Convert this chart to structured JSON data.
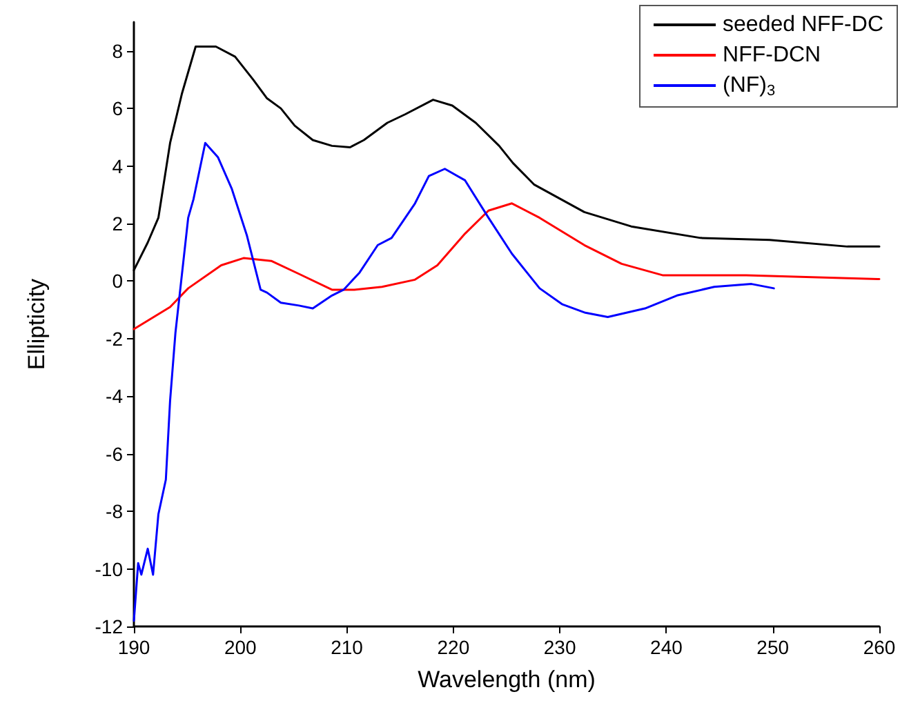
{
  "chart_data": {
    "type": "line",
    "xlabel": "Wavelength (nm)",
    "ylabel": "Ellipticity",
    "xlim": [
      190,
      260
    ],
    "xticks": [
      190,
      200,
      210,
      220,
      230,
      240,
      250,
      260
    ],
    "ylim": [
      -12,
      9
    ],
    "yticks": [
      -12,
      -10,
      -8,
      -6,
      -4,
      -2,
      0,
      2,
      4,
      6,
      8
    ],
    "legend": "top right",
    "series": [
      {
        "name": "seeded NFF-DC",
        "color": "#000000",
        "x": [
          190,
          191.3,
          192.3,
          193.4,
          194.5,
          195.8,
          197.7,
          199.5,
          201.2,
          202.5,
          203.8,
          205.1,
          206.8,
          208.6,
          210.3,
          211.6,
          213.8,
          215.5,
          218.1,
          219.9,
          222.1,
          224.3,
          225.6,
          227.6,
          232.3,
          236.7,
          243.2,
          249.7,
          257,
          260
        ],
        "values": [
          0.38,
          1.34,
          2.2,
          4.8,
          6.5,
          8.15,
          8.15,
          7.8,
          7.0,
          6.35,
          6.0,
          5.4,
          4.9,
          4.7,
          4.65,
          4.9,
          5.5,
          5.8,
          6.3,
          6.1,
          5.5,
          4.7,
          4.1,
          3.35,
          2.4,
          1.9,
          1.5,
          1.43,
          1.2,
          1.2
        ]
      },
      {
        "name": "NFF-DCN",
        "color": "#ff0000",
        "x": [
          190,
          193.4,
          195.1,
          198.2,
          200.3,
          202.9,
          205.5,
          208.6,
          210.7,
          213.3,
          216.4,
          218.5,
          221.1,
          223.3,
          225.5,
          228.1,
          232.3,
          235.8,
          239.7,
          247.5,
          260
        ],
        "values": [
          -1.67,
          -0.9,
          -0.25,
          0.55,
          0.8,
          0.7,
          0.25,
          -0.3,
          -0.3,
          -0.2,
          0.05,
          0.55,
          1.65,
          2.45,
          2.7,
          2.2,
          1.25,
          0.6,
          0.2,
          0.2,
          0.07
        ]
      },
      {
        "name": "(NF)$_{3}$",
        "color": "#0000ff",
        "x": [
          190,
          190.4,
          190.7,
          191.3,
          191.8,
          192.3,
          193,
          193.4,
          193.9,
          195.1,
          195.6,
          196.7,
          197.9,
          199.2,
          200.6,
          201.9,
          202.5,
          203.8,
          205.5,
          206.8,
          208.6,
          209.7,
          211.2,
          212.9,
          214.2,
          216.4,
          217.7,
          219.2,
          221.1,
          223.3,
          225.5,
          228.1,
          230.2,
          232.4,
          234.5,
          238,
          241,
          244.5,
          248,
          250.1
        ],
        "values": [
          -11.8,
          -9.8,
          -10.2,
          -9.3,
          -10.2,
          -8.1,
          -6.9,
          -4.15,
          -1.8,
          2.2,
          2.85,
          4.8,
          4.3,
          3.2,
          1.6,
          -0.3,
          -0.4,
          -0.75,
          -0.85,
          -0.95,
          -0.5,
          -0.3,
          0.3,
          1.25,
          1.5,
          2.7,
          3.65,
          3.9,
          3.5,
          2.2,
          0.95,
          -0.25,
          -0.8,
          -1.1,
          -1.25,
          -0.95,
          -0.5,
          -0.2,
          -0.1,
          -0.25
        ]
      }
    ]
  }
}
